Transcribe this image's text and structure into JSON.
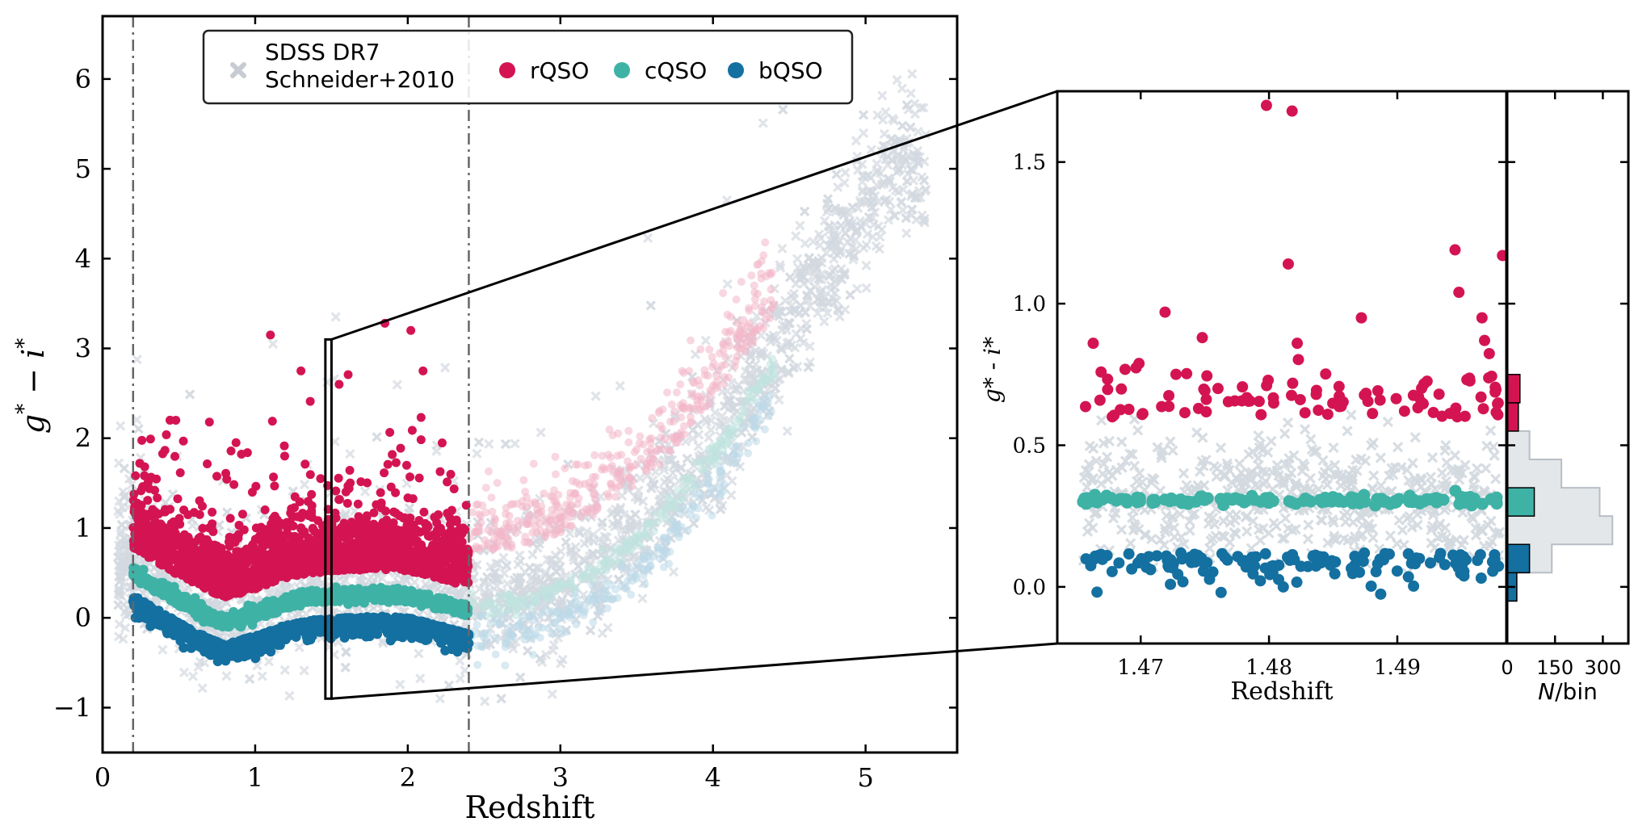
{
  "figure": {
    "colors": {
      "sdss": "#d3d9df",
      "rqso": "#d41452",
      "cqso": "#3fb2a6",
      "bqso": "#1470a0",
      "axis": "#000000",
      "vline": "#666666"
    }
  },
  "chart_data": [
    {
      "type": "scatter",
      "panel": "main",
      "xlabel": "Redshift",
      "ylabel_main": "g",
      "ylabel_sup": "*",
      "ylabel_mid": " − ",
      "ylabel_i": "i",
      "xlim": [
        0,
        5.6
      ],
      "ylim": [
        -1.5,
        6.7
      ],
      "xticks": [
        0,
        1,
        2,
        3,
        4,
        5
      ],
      "yticks": [
        -1,
        0,
        1,
        2,
        3,
        4,
        5,
        6
      ],
      "ytick_labels": [
        "−1",
        "0",
        "1",
        "2",
        "3",
        "4",
        "5",
        "6"
      ],
      "vlines": [
        0.2,
        2.4
      ],
      "zoom_box": {
        "x": [
          1.46,
          1.5
        ],
        "y": [
          -0.9,
          3.1
        ]
      },
      "legend": {
        "placement": "top-center",
        "entries": [
          {
            "label_line1": "SDSS DR7",
            "label_line2": "Schneider+2010",
            "marker": "x",
            "color_key": "sdss"
          },
          {
            "label": "rQSO",
            "marker": "circle",
            "color_key": "rqso"
          },
          {
            "label": "cQSO",
            "marker": "circle",
            "color_key": "cqso"
          },
          {
            "label": "bQSO",
            "marker": "circle",
            "color_key": "bqso"
          }
        ]
      },
      "trend": {
        "note_redshift": [
          0.2,
          0.4,
          0.6,
          0.8,
          1.0,
          1.2,
          1.4,
          1.6,
          1.8,
          2.0,
          2.2,
          2.4,
          2.8,
          3.2,
          3.6,
          4.0,
          4.4,
          4.8,
          5.2
        ],
        "cqso_color": [
          0.55,
          0.35,
          0.15,
          0.0,
          0.1,
          0.22,
          0.28,
          0.3,
          0.32,
          0.3,
          0.22,
          0.12,
          0.2,
          0.5,
          1.0,
          1.8,
          2.8,
          3.9,
          5.0
        ]
      }
    },
    {
      "type": "scatter",
      "panel": "zoom",
      "xlabel": "Redshift",
      "ylabel": "g* - i*",
      "xlim": [
        1.4635,
        1.4985
      ],
      "ylim": [
        -0.2,
        1.75
      ],
      "xticks": [
        1.47,
        1.48,
        1.49
      ],
      "xtick_labels": [
        "1.47",
        "1.48",
        "1.49"
      ],
      "yticks": [
        0.0,
        0.5,
        1.0,
        1.5
      ],
      "ytick_labels": [
        "0.0",
        "0.5",
        "1.0",
        "1.5"
      ],
      "outliers_rqso": [
        {
          "x": 1.4798,
          "y": 1.7
        },
        {
          "x": 1.4818,
          "y": 1.68
        },
        {
          "x": 1.4815,
          "y": 1.14
        },
        {
          "x": 1.4822,
          "y": 0.86
        },
        {
          "x": 1.4719,
          "y": 0.97
        },
        {
          "x": 1.4748,
          "y": 0.88
        },
        {
          "x": 1.4663,
          "y": 0.86
        },
        {
          "x": 1.4872,
          "y": 0.95
        },
        {
          "x": 1.4945,
          "y": 1.19
        },
        {
          "x": 1.4948,
          "y": 1.04
        },
        {
          "x": 1.4982,
          "y": 1.17
        },
        {
          "x": 1.4966,
          "y": 0.95
        },
        {
          "x": 1.4968,
          "y": 0.87
        }
      ]
    },
    {
      "type": "histogram",
      "panel": "histogram",
      "orientation": "horizontal",
      "xlabel": "N/bin",
      "xlabel_italic": "N",
      "xlabel_rest": "/bin",
      "xlim": [
        0,
        380
      ],
      "xticks": [
        0,
        150,
        300
      ],
      "xtick_labels": [
        "0",
        "150",
        "300"
      ],
      "bins": [
        -0.05,
        0.05,
        0.15,
        0.25,
        0.35,
        0.45,
        0.55,
        0.65,
        0.75
      ],
      "sdss_counts": [
        30,
        140,
        330,
        290,
        170,
        70,
        10,
        0
      ],
      "rqso_counts": [
        0,
        0,
        0,
        0,
        0,
        0,
        35,
        40
      ],
      "cqso_counts": [
        0,
        0,
        0,
        85,
        0,
        0,
        0,
        0
      ],
      "bqso_counts": [
        30,
        70,
        0,
        0,
        0,
        0,
        0,
        0
      ]
    }
  ]
}
